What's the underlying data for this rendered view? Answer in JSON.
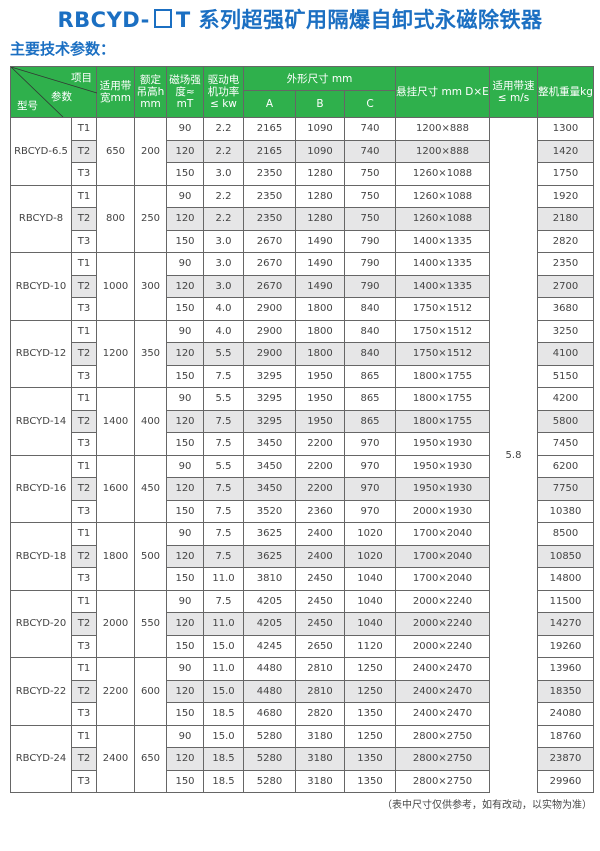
{
  "title": {
    "prefix": "RBCYD-",
    "suffix": "T 系列超强矿用隔爆自卸式永磁除铁器"
  },
  "subtitle": "主要技术参数：",
  "header": {
    "item": "项目",
    "param": "参数",
    "model": "型号",
    "belt_width": "适用带宽mm",
    "lift_height": "额定吊高h mm",
    "field": "磁场强度≈ mT",
    "power": "驱动电机功率≤ kw",
    "dims": "外形尺寸 mm",
    "a": "A",
    "b": "B",
    "c": "C",
    "hang": "悬挂尺寸 mm D×E",
    "speed": "适用带速≤ m/s",
    "weight": "整机重量kg"
  },
  "speed_value": "5.8",
  "groups": [
    {
      "model": "RBCYD-6.5",
      "width": "650",
      "height": "200",
      "rows": [
        [
          "T1",
          "90",
          "2.2",
          "2165",
          "1090",
          "740",
          "1200×888",
          "1300"
        ],
        [
          "T2",
          "120",
          "2.2",
          "2165",
          "1090",
          "740",
          "1200×888",
          "1420"
        ],
        [
          "T3",
          "150",
          "3.0",
          "2350",
          "1280",
          "750",
          "1260×1088",
          "1750"
        ]
      ]
    },
    {
      "model": "RBCYD-8",
      "width": "800",
      "height": "250",
      "rows": [
        [
          "T1",
          "90",
          "2.2",
          "2350",
          "1280",
          "750",
          "1260×1088",
          "1920"
        ],
        [
          "T2",
          "120",
          "2.2",
          "2350",
          "1280",
          "750",
          "1260×1088",
          "2180"
        ],
        [
          "T3",
          "150",
          "3.0",
          "2670",
          "1490",
          "790",
          "1400×1335",
          "2820"
        ]
      ]
    },
    {
      "model": "RBCYD-10",
      "width": "1000",
      "height": "300",
      "rows": [
        [
          "T1",
          "90",
          "3.0",
          "2670",
          "1490",
          "790",
          "1400×1335",
          "2350"
        ],
        [
          "T2",
          "120",
          "3.0",
          "2670",
          "1490",
          "790",
          "1400×1335",
          "2700"
        ],
        [
          "T3",
          "150",
          "4.0",
          "2900",
          "1800",
          "840",
          "1750×1512",
          "3680"
        ]
      ]
    },
    {
      "model": "RBCYD-12",
      "width": "1200",
      "height": "350",
      "rows": [
        [
          "T1",
          "90",
          "4.0",
          "2900",
          "1800",
          "840",
          "1750×1512",
          "3250"
        ],
        [
          "T2",
          "120",
          "5.5",
          "2900",
          "1800",
          "840",
          "1750×1512",
          "4100"
        ],
        [
          "T3",
          "150",
          "7.5",
          "3295",
          "1950",
          "865",
          "1800×1755",
          "5150"
        ]
      ]
    },
    {
      "model": "RBCYD-14",
      "width": "1400",
      "height": "400",
      "rows": [
        [
          "T1",
          "90",
          "5.5",
          "3295",
          "1950",
          "865",
          "1800×1755",
          "4200"
        ],
        [
          "T2",
          "120",
          "7.5",
          "3295",
          "1950",
          "865",
          "1800×1755",
          "5800"
        ],
        [
          "T3",
          "150",
          "7.5",
          "3450",
          "2200",
          "970",
          "1950×1930",
          "7450"
        ]
      ]
    },
    {
      "model": "RBCYD-16",
      "width": "1600",
      "height": "450",
      "rows": [
        [
          "T1",
          "90",
          "5.5",
          "3450",
          "2200",
          "970",
          "1950×1930",
          "6200"
        ],
        [
          "T2",
          "120",
          "7.5",
          "3450",
          "2200",
          "970",
          "1950×1930",
          "7750"
        ],
        [
          "T3",
          "150",
          "7.5",
          "3520",
          "2360",
          "970",
          "2000×1930",
          "10380"
        ]
      ]
    },
    {
      "model": "RBCYD-18",
      "width": "1800",
      "height": "500",
      "rows": [
        [
          "T1",
          "90",
          "7.5",
          "3625",
          "2400",
          "1020",
          "1700×2040",
          "8500"
        ],
        [
          "T2",
          "120",
          "7.5",
          "3625",
          "2400",
          "1020",
          "1700×2040",
          "10850"
        ],
        [
          "T3",
          "150",
          "11.0",
          "3810",
          "2450",
          "1040",
          "1700×2040",
          "14800"
        ]
      ]
    },
    {
      "model": "RBCYD-20",
      "width": "2000",
      "height": "550",
      "rows": [
        [
          "T1",
          "90",
          "7.5",
          "4205",
          "2450",
          "1040",
          "2000×2240",
          "11500"
        ],
        [
          "T2",
          "120",
          "11.0",
          "4205",
          "2450",
          "1040",
          "2000×2240",
          "14270"
        ],
        [
          "T3",
          "150",
          "15.0",
          "4245",
          "2650",
          "1120",
          "2000×2240",
          "19260"
        ]
      ]
    },
    {
      "model": "RBCYD-22",
      "width": "2200",
      "height": "600",
      "rows": [
        [
          "T1",
          "90",
          "11.0",
          "4480",
          "2810",
          "1250",
          "2400×2470",
          "13960"
        ],
        [
          "T2",
          "120",
          "15.0",
          "4480",
          "2810",
          "1250",
          "2400×2470",
          "18350"
        ],
        [
          "T3",
          "150",
          "18.5",
          "4680",
          "2820",
          "1350",
          "2400×2470",
          "24080"
        ]
      ]
    },
    {
      "model": "RBCYD-24",
      "width": "2400",
      "height": "650",
      "rows": [
        [
          "T1",
          "90",
          "15.0",
          "5280",
          "3180",
          "1250",
          "2800×2750",
          "18760"
        ],
        [
          "T2",
          "120",
          "18.5",
          "5280",
          "3180",
          "1350",
          "2800×2750",
          "23870"
        ],
        [
          "T3",
          "150",
          "18.5",
          "5280",
          "3180",
          "1350",
          "2800×2750",
          "29960"
        ]
      ]
    }
  ],
  "note": "（表中尺寸仅供参考，如有改动，以实物为准）",
  "colors": {
    "title": "#1b6fc2",
    "header_bg": "#2fb04c",
    "stripe": "#e6e6e7"
  }
}
